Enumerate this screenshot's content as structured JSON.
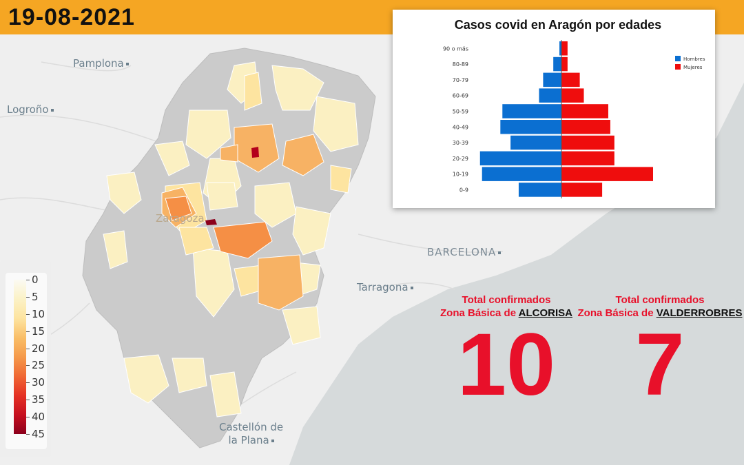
{
  "header": {
    "date": "19-08-2021"
  },
  "map": {
    "cities": [
      {
        "name": "Pamplona"
      },
      {
        "name": "Logroño"
      },
      {
        "name": "Zaragoza"
      },
      {
        "name": "BARCELONA"
      },
      {
        "name": "Tarragona"
      },
      {
        "name": "Castellón de"
      },
      {
        "name": "la Plana"
      }
    ]
  },
  "legend": {
    "labels": [
      "0",
      "5",
      "10",
      "15",
      "20",
      "25",
      "30",
      "35",
      "40",
      "45"
    ],
    "colors": [
      "#fbfaf3",
      "#fbf2c8",
      "#fde4a0",
      "#f9bd66",
      "#f59a4a",
      "#f06a35",
      "#e53124",
      "#c50f1f",
      "#8c001c"
    ]
  },
  "chart_data": {
    "type": "bar",
    "orientation": "horizontal-pyramid",
    "title": "Casos covid en Aragón por edades",
    "categories": [
      "90 o más",
      "80-89",
      "70-79",
      "60-69",
      "50-59",
      "40-49",
      "30-39",
      "20-29",
      "10-19",
      "0-9"
    ],
    "series": [
      {
        "name": "Hombres",
        "color": "#0b6fd1",
        "values": [
          1,
          4,
          9,
          11,
          29,
          30,
          25,
          40,
          39,
          21
        ]
      },
      {
        "name": "Mujeres",
        "color": "#ef0d0d",
        "values": [
          3,
          3,
          9,
          11,
          23,
          24,
          26,
          26,
          45,
          20
        ]
      }
    ],
    "legend_position": "top-right",
    "grid": false
  },
  "stats": [
    {
      "heading": "Total confirmados",
      "zone_prefix": "Zona Básica de ",
      "zone_name": "ALCORISA",
      "value": "10"
    },
    {
      "heading": "Total confirmados",
      "zone_prefix": "Zona Básica de ",
      "zone_name": "VALDERROBRES",
      "value": "7"
    }
  ]
}
